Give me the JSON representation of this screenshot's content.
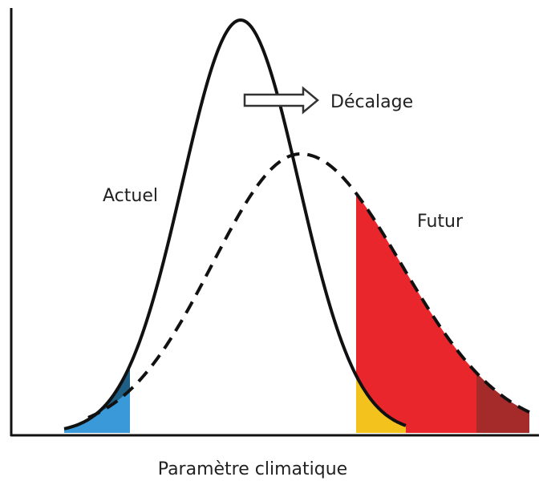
{
  "labels": {
    "shift": "Décalage",
    "current": "Actuel",
    "future": "Futur",
    "x_axis": "Paramètre climatique"
  }
}
